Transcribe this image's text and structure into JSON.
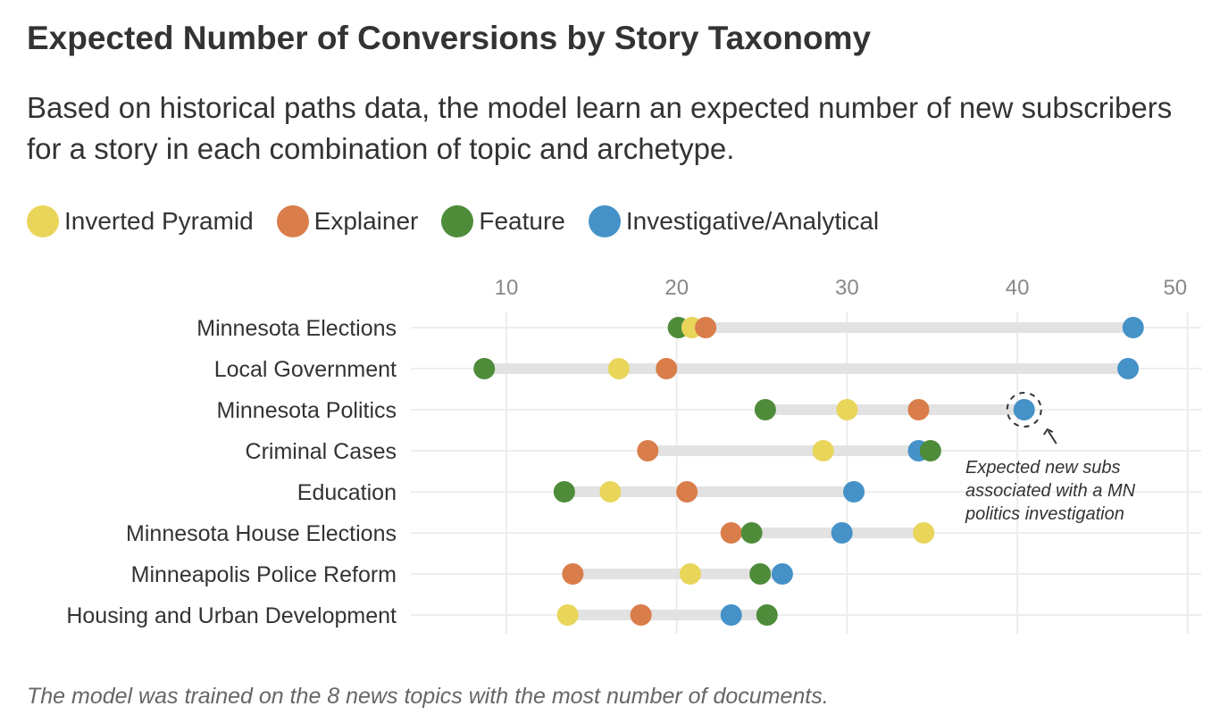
{
  "chart_data": {
    "type": "dot",
    "title": "Expected Number of Conversions by Story Taxonomy",
    "subtitle": "Based on historical paths data, the model learn an expected number of new subscribers for a story in each combination of topic and archetype.",
    "footnote": "The model was trained on the 8 news topics with the most number of documents.",
    "xlim": [
      5,
      51
    ],
    "xticks": [
      10,
      20,
      30,
      40,
      50
    ],
    "grid": true,
    "legend_placement": "top-left",
    "categories": [
      "Minnesota Elections",
      "Local Government",
      "Minnesota Politics",
      "Criminal Cases",
      "Education",
      "Minnesota House Elections",
      "Minneapolis Police Reform",
      "Housing and Urban Development"
    ],
    "series": [
      {
        "name": "Inverted Pyramid",
        "color": "#e8d55a",
        "values": [
          20.9,
          16.6,
          30.0,
          28.6,
          16.1,
          34.5,
          20.8,
          13.6
        ]
      },
      {
        "name": "Explainer",
        "color": "#d97d4a",
        "values": [
          21.7,
          19.4,
          34.2,
          18.3,
          20.6,
          23.2,
          13.9,
          17.9
        ]
      },
      {
        "name": "Feature",
        "color": "#4e8c3a",
        "values": [
          20.1,
          8.7,
          25.2,
          34.9,
          13.4,
          24.4,
          24.9,
          25.3
        ]
      },
      {
        "name": "Investigative/Analytical",
        "color": "#4592c8",
        "values": [
          46.8,
          46.5,
          40.4,
          34.2,
          30.4,
          29.7,
          26.2,
          23.2
        ]
      }
    ],
    "annotation": {
      "category": "Minnesota Politics",
      "series": "Investigative/Analytical",
      "lines": [
        "Expected new subs",
        "associated with a MN",
        "politics investigation"
      ]
    }
  }
}
